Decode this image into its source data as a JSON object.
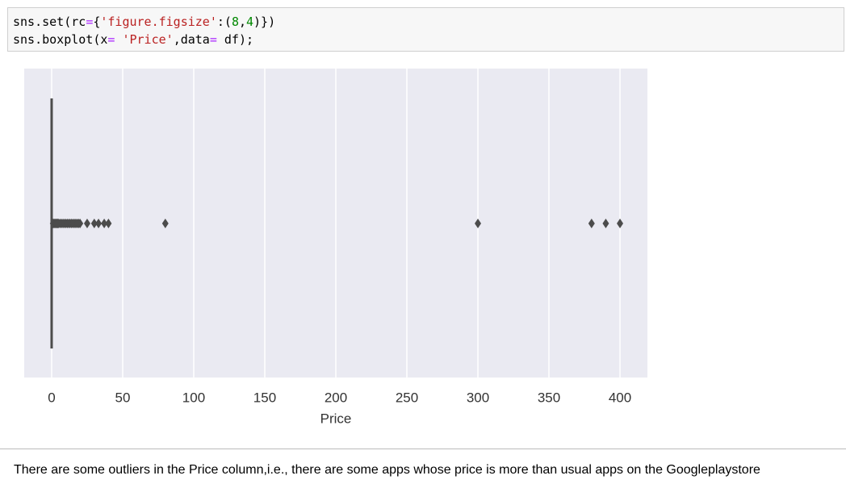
{
  "code": [
    [
      "sns.set(rc",
      "=",
      "{",
      "'figure.figsize'",
      ":(",
      "8",
      ",",
      "4",
      ")})"
    ],
    [
      "sns.boxplot(x",
      "= ",
      "'Price'",
      ",data",
      "= ",
      "df);"
    ]
  ],
  "chart_data": {
    "type": "box",
    "xlabel": "Price",
    "color": "#4c4c4c",
    "background": "#eaeaf2",
    "grid": true,
    "xlim": [
      -19.3,
      419.3
    ],
    "xticks": [
      0,
      50,
      100,
      150,
      200,
      250,
      300,
      350,
      400
    ],
    "stats": {
      "whislo": 0,
      "q1": 0,
      "med": 0,
      "q3": 0,
      "whishi": 0
    },
    "fliers": [
      1,
      1.5,
      2,
      2.5,
      3,
      3.5,
      4,
      4.5,
      5,
      6,
      7,
      8,
      9,
      10,
      11,
      12,
      13,
      14,
      15,
      16,
      17,
      18,
      19,
      20,
      25,
      30,
      33,
      37,
      40,
      80,
      300,
      380,
      390,
      400
    ]
  },
  "markdown": "There are some outliers in the Price column,i.e., there are some apps whose price is more than usual apps on the Googleplaystore"
}
